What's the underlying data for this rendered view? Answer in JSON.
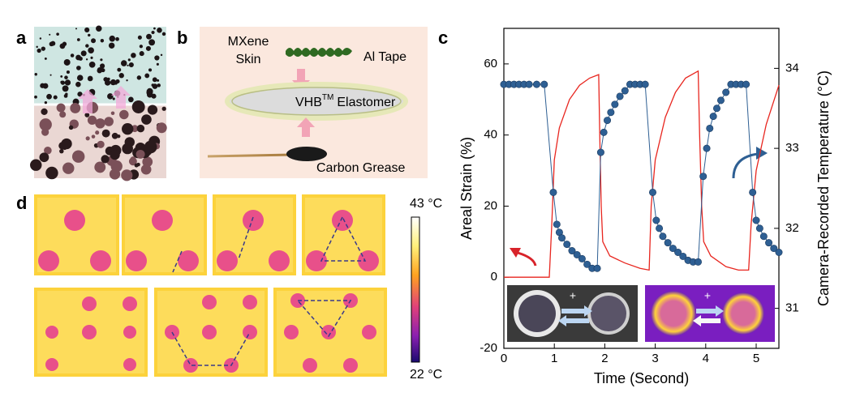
{
  "panels": {
    "a": {
      "label": "a"
    },
    "b": {
      "label": "b",
      "skin_line1": "MXene",
      "skin_line2": "Skin",
      "tape": "Al Tape",
      "vhb": "VHB",
      "tm": "TM",
      "elastomer": "Elastomer",
      "grease": "Carbon Grease"
    },
    "c": {
      "label": "c",
      "inset_plus": [
        "+",
        "+"
      ]
    },
    "d": {
      "label": "d",
      "colorbar_max": "43 °C",
      "colorbar_min": "22 °C"
    }
  },
  "chart_data": {
    "type": "line",
    "xlabel": "Time (Second)",
    "ylabel": "Areal Strain (%)",
    "y2label": "Camera-Recorded Temperature (°C)",
    "xlim": [
      0,
      5.45
    ],
    "xticks": [
      0,
      1,
      2,
      3,
      4,
      5
    ],
    "ylim": [
      -20,
      70
    ],
    "yticks": [
      -20,
      0,
      20,
      40,
      60
    ],
    "y2lim": [
      30.5,
      34.5
    ],
    "y2ticks": [
      31,
      32,
      33,
      34
    ],
    "series": [
      {
        "color": "#e8261f",
        "x": [
          0,
          0.9,
          0.95,
          1.0,
          1.1,
          1.3,
          1.5,
          1.7,
          1.88,
          1.9,
          1.93,
          1.96,
          2.1,
          2.4,
          2.7,
          2.88,
          2.92,
          3.0,
          3.2,
          3.4,
          3.6,
          3.85,
          3.88,
          3.92,
          3.96,
          4.1,
          4.4,
          4.65,
          4.85,
          4.9,
          5.0,
          5.2,
          5.45
        ],
        "values": [
          0,
          0,
          15,
          33,
          42,
          50,
          54,
          56,
          57,
          40,
          20,
          10,
          6,
          4,
          2.5,
          2,
          20,
          33,
          45,
          52,
          56,
          58,
          40,
          20,
          10,
          6,
          3,
          2,
          2,
          15,
          30,
          43,
          54
        ]
      },
      {
        "color": "#2e5f93",
        "axis": "y2",
        "markers": true,
        "x": [
          0,
          0.1,
          0.2,
          0.3,
          0.4,
          0.5,
          0.65,
          0.8,
          0.98,
          1.05,
          1.1,
          1.15,
          1.25,
          1.35,
          1.45,
          1.55,
          1.65,
          1.75,
          1.85,
          1.92,
          1.98,
          2.05,
          2.12,
          2.2,
          2.3,
          2.4,
          2.5,
          2.6,
          2.7,
          2.8,
          2.95,
          3.02,
          3.08,
          3.15,
          3.25,
          3.35,
          3.45,
          3.55,
          3.65,
          3.75,
          3.85,
          3.95,
          4.02,
          4.08,
          4.15,
          4.22,
          4.3,
          4.4,
          4.5,
          4.6,
          4.7,
          4.8,
          4.93,
          5.0,
          5.07,
          5.15,
          5.25,
          5.35,
          5.45
        ],
        "values": [
          33.8,
          33.8,
          33.8,
          33.8,
          33.8,
          33.8,
          33.8,
          33.8,
          32.45,
          32.05,
          31.95,
          31.88,
          31.8,
          31.72,
          31.67,
          31.62,
          31.55,
          31.5,
          31.5,
          32.95,
          33.2,
          33.35,
          33.45,
          33.55,
          33.65,
          33.72,
          33.8,
          33.8,
          33.8,
          33.8,
          32.45,
          32.1,
          32.0,
          31.9,
          31.82,
          31.75,
          31.7,
          31.65,
          31.6,
          31.58,
          31.58,
          32.65,
          33.0,
          33.25,
          33.4,
          33.5,
          33.6,
          33.7,
          33.8,
          33.8,
          33.8,
          33.8,
          32.45,
          32.1,
          32.0,
          31.9,
          31.82,
          31.75,
          31.7
        ]
      }
    ]
  }
}
